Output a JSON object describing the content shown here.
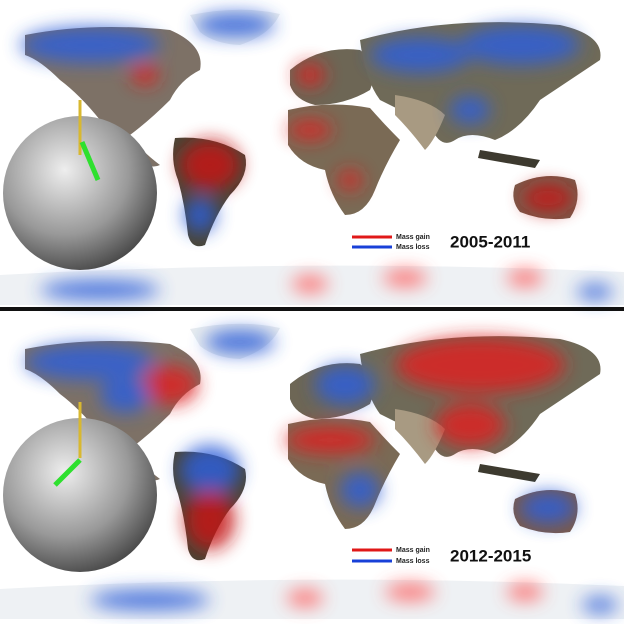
{
  "panels": [
    {
      "legend": {
        "gain": "Mass gain",
        "loss": "Mass loss"
      },
      "period": "2005-2011"
    },
    {
      "legend": {
        "gain": "Mass gain",
        "loss": "Mass loss"
      },
      "period": "2012-2015"
    }
  ]
}
